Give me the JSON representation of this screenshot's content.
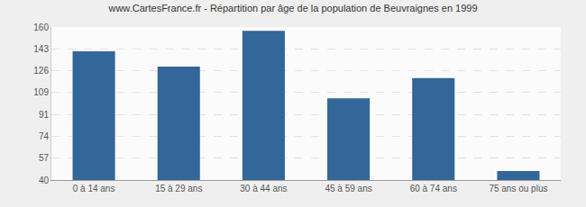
{
  "chart_data": {
    "type": "bar",
    "title": "www.CartesFrance.fr - Répartition par âge de la population de Beuvraignes en 1999",
    "categories": [
      "0 à 14 ans",
      "15 à 29 ans",
      "30 à 44 ans",
      "45 à 59 ans",
      "60 à 74 ans",
      "75 ans ou plus"
    ],
    "values": [
      141,
      129,
      157,
      104,
      120,
      47
    ],
    "color": "#336699",
    "ylim": [
      40,
      160
    ],
    "yticks": [
      40,
      57,
      74,
      91,
      109,
      126,
      143,
      160
    ],
    "grid": true
  }
}
